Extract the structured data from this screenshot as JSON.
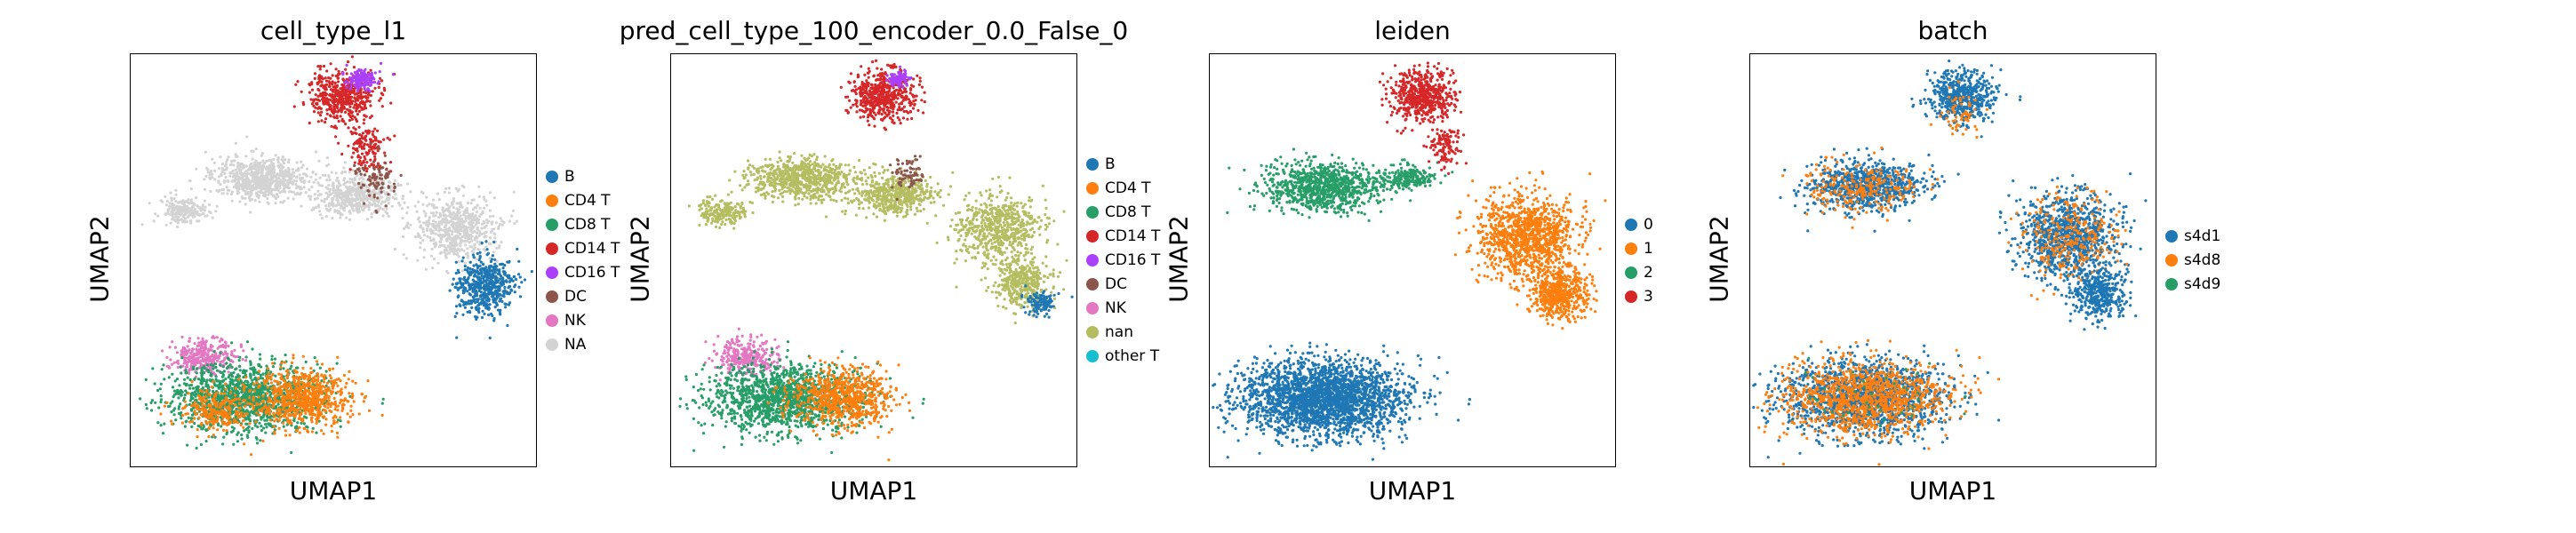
{
  "chart_data": [
    {
      "type": "scatter",
      "title": "cell_type_l1",
      "xlabel": "UMAP1",
      "ylabel": "UMAP2",
      "legend_position": "right",
      "grid": false,
      "legend": [
        {
          "label": "B",
          "color": "#1f77b4"
        },
        {
          "label": "CD4 T",
          "color": "#ff7f0e"
        },
        {
          "label": "CD8 T",
          "color": "#279e68"
        },
        {
          "label": "CD14 T",
          "color": "#d62728"
        },
        {
          "label": "CD16 T",
          "color": "#aa40fc"
        },
        {
          "label": "DC",
          "color": "#8c564b"
        },
        {
          "label": "NK",
          "color": "#e377c2"
        },
        {
          "label": "NA",
          "color": "#d3d3d3"
        }
      ],
      "clusters": [
        {
          "category": "NA",
          "cx": 0.32,
          "cy": 0.3,
          "rx": 0.12,
          "ry": 0.05,
          "n": 700
        },
        {
          "category": "NA",
          "cx": 0.55,
          "cy": 0.34,
          "rx": 0.1,
          "ry": 0.05,
          "n": 500
        },
        {
          "category": "NA",
          "cx": 0.8,
          "cy": 0.42,
          "rx": 0.1,
          "ry": 0.08,
          "n": 600
        },
        {
          "category": "NA",
          "cx": 0.13,
          "cy": 0.38,
          "rx": 0.06,
          "ry": 0.03,
          "n": 200
        },
        {
          "category": "B",
          "cx": 0.87,
          "cy": 0.56,
          "rx": 0.07,
          "ry": 0.07,
          "n": 550
        },
        {
          "category": "CD14 T",
          "cx": 0.52,
          "cy": 0.1,
          "rx": 0.08,
          "ry": 0.06,
          "n": 500
        },
        {
          "category": "CD14 T",
          "cx": 0.58,
          "cy": 0.22,
          "rx": 0.05,
          "ry": 0.06,
          "n": 150
        },
        {
          "category": "CD16 T",
          "cx": 0.57,
          "cy": 0.06,
          "rx": 0.035,
          "ry": 0.025,
          "n": 150
        },
        {
          "category": "DC",
          "cx": 0.6,
          "cy": 0.3,
          "rx": 0.05,
          "ry": 0.06,
          "n": 90
        },
        {
          "category": "NK",
          "cx": 0.18,
          "cy": 0.73,
          "rx": 0.08,
          "ry": 0.04,
          "n": 300
        },
        {
          "category": "CD8 T",
          "cx": 0.28,
          "cy": 0.83,
          "rx": 0.19,
          "ry": 0.08,
          "n": 1400
        },
        {
          "category": "CD4 T",
          "cx": 0.42,
          "cy": 0.83,
          "rx": 0.12,
          "ry": 0.07,
          "n": 700
        },
        {
          "category": "CD4 T",
          "cx": 0.21,
          "cy": 0.86,
          "rx": 0.09,
          "ry": 0.05,
          "n": 250
        }
      ]
    },
    {
      "type": "scatter",
      "title": "pred_cell_type_100_encoder_0.0_False_0",
      "xlabel": "UMAP1",
      "ylabel": "UMAP2",
      "legend_position": "right",
      "grid": false,
      "legend": [
        {
          "label": "B",
          "color": "#1f77b4"
        },
        {
          "label": "CD4 T",
          "color": "#ff7f0e"
        },
        {
          "label": "CD8 T",
          "color": "#279e68"
        },
        {
          "label": "CD14 T",
          "color": "#d62728"
        },
        {
          "label": "CD16 T",
          "color": "#aa40fc"
        },
        {
          "label": "DC",
          "color": "#8c564b"
        },
        {
          "label": "NK",
          "color": "#e377c2"
        },
        {
          "label": "nan",
          "color": "#b5bd61"
        },
        {
          "label": "other T",
          "color": "#17becf"
        }
      ],
      "clusters": [
        {
          "category": "nan",
          "cx": 0.32,
          "cy": 0.3,
          "rx": 0.12,
          "ry": 0.05,
          "n": 700
        },
        {
          "category": "nan",
          "cx": 0.55,
          "cy": 0.34,
          "rx": 0.1,
          "ry": 0.05,
          "n": 500
        },
        {
          "category": "nan",
          "cx": 0.8,
          "cy": 0.42,
          "rx": 0.1,
          "ry": 0.08,
          "n": 600
        },
        {
          "category": "nan",
          "cx": 0.13,
          "cy": 0.38,
          "rx": 0.06,
          "ry": 0.03,
          "n": 200
        },
        {
          "category": "nan",
          "cx": 0.86,
          "cy": 0.55,
          "rx": 0.07,
          "ry": 0.06,
          "n": 400
        },
        {
          "category": "B",
          "cx": 0.91,
          "cy": 0.6,
          "rx": 0.035,
          "ry": 0.03,
          "n": 120
        },
        {
          "category": "CD14 T",
          "cx": 0.52,
          "cy": 0.1,
          "rx": 0.08,
          "ry": 0.06,
          "n": 500
        },
        {
          "category": "CD16 T",
          "cx": 0.56,
          "cy": 0.06,
          "rx": 0.025,
          "ry": 0.02,
          "n": 80
        },
        {
          "category": "DC",
          "cx": 0.58,
          "cy": 0.29,
          "rx": 0.04,
          "ry": 0.04,
          "n": 70
        },
        {
          "category": "NK",
          "cx": 0.18,
          "cy": 0.73,
          "rx": 0.08,
          "ry": 0.04,
          "n": 300
        },
        {
          "category": "CD8 T",
          "cx": 0.28,
          "cy": 0.83,
          "rx": 0.19,
          "ry": 0.08,
          "n": 1400
        },
        {
          "category": "CD4 T",
          "cx": 0.42,
          "cy": 0.83,
          "rx": 0.12,
          "ry": 0.07,
          "n": 700
        }
      ]
    },
    {
      "type": "scatter",
      "title": "leiden",
      "xlabel": "UMAP1",
      "ylabel": "UMAP2",
      "legend_position": "right",
      "grid": false,
      "legend": [
        {
          "label": "0",
          "color": "#1f77b4"
        },
        {
          "label": "1",
          "color": "#ff7f0e"
        },
        {
          "label": "2",
          "color": "#279e68"
        },
        {
          "label": "3",
          "color": "#d62728"
        }
      ],
      "clusters": [
        {
          "category": "2",
          "cx": 0.28,
          "cy": 0.32,
          "rx": 0.14,
          "ry": 0.06,
          "n": 900
        },
        {
          "category": "2",
          "cx": 0.48,
          "cy": 0.3,
          "rx": 0.07,
          "ry": 0.03,
          "n": 200
        },
        {
          "category": "1",
          "cx": 0.78,
          "cy": 0.44,
          "rx": 0.12,
          "ry": 0.1,
          "n": 1100
        },
        {
          "category": "1",
          "cx": 0.86,
          "cy": 0.58,
          "rx": 0.07,
          "ry": 0.06,
          "n": 500
        },
        {
          "category": "3",
          "cx": 0.52,
          "cy": 0.1,
          "rx": 0.08,
          "ry": 0.06,
          "n": 550
        },
        {
          "category": "3",
          "cx": 0.58,
          "cy": 0.22,
          "rx": 0.04,
          "ry": 0.05,
          "n": 120
        },
        {
          "category": "0",
          "cx": 0.28,
          "cy": 0.83,
          "rx": 0.2,
          "ry": 0.09,
          "n": 2500
        }
      ]
    },
    {
      "type": "scatter",
      "title": "batch",
      "xlabel": "UMAP1",
      "ylabel": "UMAP2",
      "legend_position": "right",
      "grid": false,
      "legend": [
        {
          "label": "s4d1",
          "color": "#1f77b4"
        },
        {
          "label": "s4d8",
          "color": "#ff7f0e"
        },
        {
          "label": "s4d9",
          "color": "#279e68"
        }
      ],
      "clusters": [
        {
          "category": "s4d1",
          "cx": 0.28,
          "cy": 0.32,
          "rx": 0.14,
          "ry": 0.06,
          "n": 800
        },
        {
          "category": "s4d8",
          "cx": 0.28,
          "cy": 0.32,
          "rx": 0.14,
          "ry": 0.06,
          "n": 250
        },
        {
          "category": "s4d1",
          "cx": 0.78,
          "cy": 0.44,
          "rx": 0.12,
          "ry": 0.1,
          "n": 1000
        },
        {
          "category": "s4d8",
          "cx": 0.78,
          "cy": 0.44,
          "rx": 0.12,
          "ry": 0.1,
          "n": 300
        },
        {
          "category": "s4d1",
          "cx": 0.86,
          "cy": 0.58,
          "rx": 0.07,
          "ry": 0.06,
          "n": 400
        },
        {
          "category": "s4d1",
          "cx": 0.52,
          "cy": 0.1,
          "rx": 0.08,
          "ry": 0.06,
          "n": 550
        },
        {
          "category": "s4d8",
          "cx": 0.52,
          "cy": 0.14,
          "rx": 0.05,
          "ry": 0.05,
          "n": 60
        },
        {
          "category": "s4d1",
          "cx": 0.28,
          "cy": 0.83,
          "rx": 0.2,
          "ry": 0.09,
          "n": 1500
        },
        {
          "category": "s4d8",
          "cx": 0.28,
          "cy": 0.83,
          "rx": 0.2,
          "ry": 0.09,
          "n": 1100
        },
        {
          "category": "s4d9",
          "cx": 0.28,
          "cy": 0.83,
          "rx": 0.2,
          "ry": 0.09,
          "n": 40
        }
      ]
    }
  ]
}
